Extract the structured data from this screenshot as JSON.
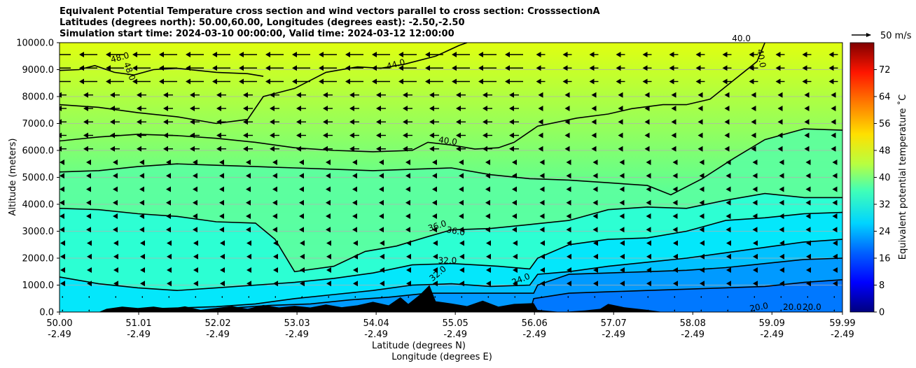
{
  "chart_data": {
    "type": "heatmap",
    "title_lines": [
      "Equivalent Potential Temperature cross section and wind vectors parallel to cross section: CrosssectionA",
      "Latitudes (degrees north): 50.00,60.00, Longitudes (degrees east): -2.50,-2.50",
      "Simulation start time: 2024-03-10 00:00:00, Valid time: 2024-03-12 12:00:00"
    ],
    "xlabel_lines": [
      "Latitude (degrees N)",
      "Longitude (degrees E)"
    ],
    "ylabel": "Altitude (meters)",
    "xlim": [
      50.0,
      59.99
    ],
    "ylim": [
      0,
      10000
    ],
    "x_ticks": [
      {
        "lat": "50.00",
        "lon": "-2.49"
      },
      {
        "lat": "51.01",
        "lon": "-2.49"
      },
      {
        "lat": "52.02",
        "lon": "-2.49"
      },
      {
        "lat": "53.03",
        "lon": "-2.49"
      },
      {
        "lat": "54.04",
        "lon": "-2.49"
      },
      {
        "lat": "55.05",
        "lon": "-2.49"
      },
      {
        "lat": "56.06",
        "lon": "-2.49"
      },
      {
        "lat": "57.07",
        "lon": "-2.49"
      },
      {
        "lat": "58.08",
        "lon": "-2.49"
      },
      {
        "lat": "59.09",
        "lon": "-2.49"
      },
      {
        "lat": "59.99",
        "lon": "-2.49"
      }
    ],
    "y_ticks": [
      "0.0",
      "1000.0",
      "2000.0",
      "3000.0",
      "4000.0",
      "5000.0",
      "6000.0",
      "7000.0",
      "8000.0",
      "9000.0",
      "10000.0"
    ],
    "grid": "horizontal",
    "colorbar": {
      "label": "Equivalent potential temperature $^\\circ$C",
      "label_display": "Equivalent potential temperature ˚C",
      "min": 0,
      "max": 80,
      "ticks": [
        "0",
        "8",
        "16",
        "24",
        "32",
        "40",
        "48",
        "56",
        "64",
        "72"
      ]
    },
    "quiver_key": {
      "label": "50 m/s"
    },
    "contour_labels": [
      "48.0",
      "48.0",
      "44.0",
      "40.0",
      "40.0",
      "40.0",
      "36.0",
      "36.0",
      "32.0",
      "32.0",
      "24.0",
      "20.0",
      "20.0",
      "20.0"
    ],
    "contours": [
      {
        "level": 48,
        "points": [
          [
            50.0,
            8970
          ],
          [
            50.25,
            9000
          ],
          [
            50.45,
            9150
          ],
          [
            50.7,
            8900
          ],
          [
            50.95,
            8800
          ],
          [
            51.2,
            9000
          ],
          [
            51.5,
            9050
          ],
          [
            52.0,
            8900
          ],
          [
            52.4,
            8850
          ],
          [
            52.6,
            8750
          ]
        ]
      },
      {
        "level": 44,
        "points": [
          [
            50.0,
            7700
          ],
          [
            50.5,
            7600
          ],
          [
            51.0,
            7400
          ],
          [
            51.5,
            7250
          ],
          [
            52.0,
            7000
          ],
          [
            52.4,
            7150
          ],
          [
            52.6,
            8000
          ],
          [
            53.0,
            8300
          ],
          [
            53.4,
            8900
          ],
          [
            53.8,
            9100
          ],
          [
            54.1,
            9050
          ],
          [
            54.4,
            9200
          ],
          [
            54.8,
            9500
          ],
          [
            55.1,
            9900
          ],
          [
            55.2,
            10000
          ]
        ]
      },
      {
        "level": 40,
        "points": [
          [
            50.0,
            6350
          ],
          [
            50.5,
            6500
          ],
          [
            51.0,
            6600
          ],
          [
            51.5,
            6550
          ],
          [
            52.0,
            6450
          ],
          [
            52.5,
            6300
          ],
          [
            53.0,
            6100
          ],
          [
            53.5,
            6000
          ],
          [
            54.0,
            5950
          ],
          [
            54.5,
            6000
          ],
          [
            54.7,
            6300
          ],
          [
            55.0,
            6200
          ],
          [
            55.3,
            6050
          ],
          [
            55.6,
            6100
          ],
          [
            55.8,
            6300
          ],
          [
            56.1,
            6900
          ],
          [
            56.6,
            7200
          ],
          [
            57.0,
            7350
          ],
          [
            57.3,
            7550
          ],
          [
            57.7,
            7700
          ],
          [
            58.0,
            7700
          ],
          [
            58.3,
            7900
          ],
          [
            58.6,
            8600
          ],
          [
            58.9,
            9300
          ],
          [
            59.0,
            10000
          ]
        ]
      },
      {
        "level": 36,
        "points": [
          [
            50.0,
            5200
          ],
          [
            50.5,
            5250
          ],
          [
            51.0,
            5400
          ],
          [
            51.5,
            5500
          ],
          [
            52.0,
            5450
          ],
          [
            52.5,
            5400
          ],
          [
            53.0,
            5350
          ],
          [
            53.5,
            5300
          ],
          [
            54.0,
            5250
          ],
          [
            54.5,
            5300
          ],
          [
            55.0,
            5350
          ],
          [
            55.5,
            5100
          ],
          [
            56.0,
            4950
          ],
          [
            56.5,
            4900
          ],
          [
            57.0,
            4800
          ],
          [
            57.5,
            4700
          ],
          [
            57.8,
            4350
          ],
          [
            58.2,
            4950
          ],
          [
            58.6,
            5700
          ],
          [
            59.0,
            6400
          ],
          [
            59.5,
            6800
          ],
          [
            59.99,
            6750
          ]
        ]
      },
      {
        "level": 32,
        "points": [
          [
            50.0,
            3850
          ],
          [
            50.5,
            3800
          ],
          [
            51.0,
            3650
          ],
          [
            51.5,
            3550
          ],
          [
            52.0,
            3350
          ],
          [
            52.5,
            3300
          ],
          [
            52.75,
            2700
          ],
          [
            53.0,
            1500
          ],
          [
            53.5,
            1700
          ],
          [
            53.9,
            2250
          ],
          [
            54.3,
            2450
          ],
          [
            54.7,
            2800
          ],
          [
            55.0,
            3050
          ],
          [
            55.5,
            3100
          ],
          [
            56.0,
            3250
          ],
          [
            56.5,
            3400
          ],
          [
            57.0,
            3800
          ],
          [
            57.5,
            3900
          ],
          [
            58.0,
            3850
          ],
          [
            58.5,
            4150
          ],
          [
            59.0,
            4400
          ],
          [
            59.5,
            4250
          ],
          [
            59.99,
            4250
          ]
        ]
      },
      {
        "level": 28,
        "points": [
          [
            50.0,
            1300
          ],
          [
            50.5,
            1050
          ],
          [
            51.0,
            900
          ],
          [
            51.5,
            800
          ],
          [
            52.0,
            900
          ],
          [
            52.5,
            1000
          ],
          [
            53.0,
            1100
          ],
          [
            53.5,
            1250
          ],
          [
            54.0,
            1450
          ],
          [
            54.5,
            1750
          ],
          [
            55.0,
            1800
          ],
          [
            55.3,
            1750
          ],
          [
            55.6,
            1700
          ],
          [
            56.0,
            1600
          ],
          [
            56.1,
            2000
          ],
          [
            56.5,
            2500
          ],
          [
            57.0,
            2700
          ],
          [
            57.5,
            2750
          ],
          [
            58.0,
            3000
          ],
          [
            58.5,
            3400
          ],
          [
            59.0,
            3500
          ],
          [
            59.5,
            3650
          ],
          [
            59.99,
            3700
          ]
        ]
      },
      {
        "level": 24,
        "points": [
          [
            50.6,
            0
          ],
          [
            51.0,
            100
          ],
          [
            51.5,
            150
          ],
          [
            52.0,
            200
          ],
          [
            52.5,
            300
          ],
          [
            53.0,
            500
          ],
          [
            53.5,
            650
          ],
          [
            54.0,
            800
          ],
          [
            54.5,
            1000
          ],
          [
            55.0,
            1050
          ],
          [
            55.5,
            950
          ],
          [
            56.0,
            1000
          ],
          [
            56.1,
            1400
          ],
          [
            56.5,
            1500
          ],
          [
            57.0,
            1700
          ],
          [
            57.5,
            1850
          ],
          [
            58.0,
            2000
          ],
          [
            58.5,
            2200
          ],
          [
            59.0,
            2400
          ],
          [
            59.5,
            2600
          ],
          [
            59.99,
            2700
          ]
        ]
      },
      {
        "level": 22,
        "points": [
          [
            51.8,
            0
          ],
          [
            52.2,
            150
          ],
          [
            52.7,
            250
          ],
          [
            53.2,
            300
          ],
          [
            53.7,
            450
          ],
          [
            54.2,
            550
          ],
          [
            54.7,
            700
          ],
          [
            55.1,
            700
          ],
          [
            55.5,
            700
          ],
          [
            56.05,
            700
          ],
          [
            56.1,
            1000
          ],
          [
            56.5,
            1400
          ],
          [
            57.0,
            1450
          ],
          [
            57.5,
            1500
          ],
          [
            58.0,
            1550
          ],
          [
            58.5,
            1650
          ],
          [
            59.0,
            1800
          ],
          [
            59.5,
            1950
          ],
          [
            59.99,
            2000
          ]
        ]
      },
      {
        "level": 20,
        "points": [
          [
            56.0,
            0
          ],
          [
            56.05,
            500
          ],
          [
            56.5,
            700
          ],
          [
            57.0,
            750
          ],
          [
            57.5,
            800
          ],
          [
            58.0,
            850
          ],
          [
            58.5,
            900
          ],
          [
            59.0,
            950
          ],
          [
            59.5,
            1100
          ],
          [
            59.99,
            1200
          ]
        ]
      }
    ]
  }
}
